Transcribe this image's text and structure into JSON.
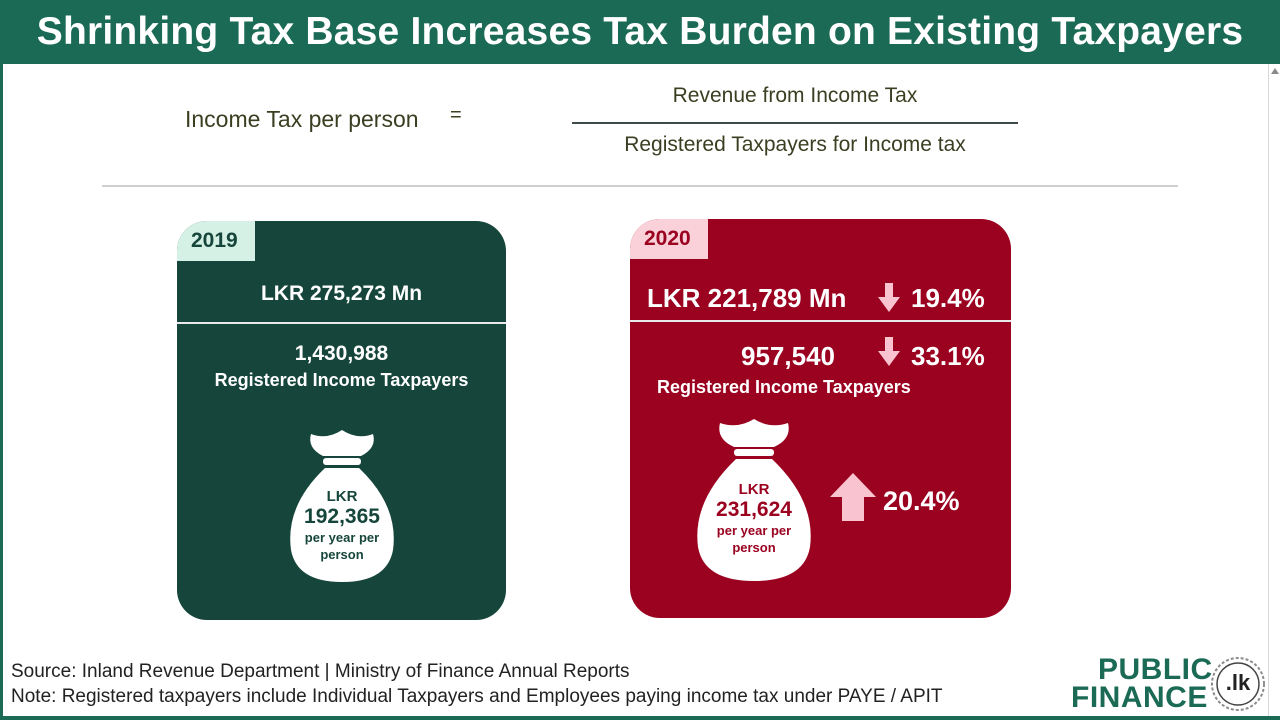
{
  "header": {
    "title": "Shrinking Tax Base Increases Tax Burden on Existing Taxpayers"
  },
  "formula": {
    "lhs": "Income Tax per person",
    "equals": "=",
    "numerator": "Revenue from Income Tax",
    "denominator": "Registered Taxpayers for Income tax"
  },
  "card_2019": {
    "year": "2019",
    "revenue": "LKR 275,273 Mn",
    "taxpayers_count": "1,430,988",
    "taxpayers_label": "Registered Income Taxpayers",
    "bag_currency": "LKR",
    "bag_amount": "192,365",
    "bag_unit": "per year per person",
    "color": "#16463b",
    "tag_color": "#d5f0e4"
  },
  "card_2020": {
    "year": "2020",
    "revenue": "LKR 221,789 Mn",
    "revenue_change": "19.4%",
    "taxpayers_count": "957,540",
    "taxpayers_change": "33.1%",
    "taxpayers_label": "Registered Income Taxpayers",
    "bag_currency": "LKR",
    "bag_amount": "231,624",
    "bag_unit": "per year per person",
    "bag_change": "20.4%",
    "color": "#9a0220",
    "tag_color": "#fad1d9",
    "arrow_color": "#f9c4d0"
  },
  "footer": {
    "source": "Source: Inland Revenue Department | Ministry of Finance Annual Reports",
    "note": "Note: Registered taxpayers include Individual Taxpayers and Employees paying income tax under PAYE / APIT"
  },
  "logo": {
    "line1": "PUBLIC",
    "line2": "FINANCE",
    "seal_text": ".lk",
    "color": "#1b6a55"
  },
  "icons": [
    "down-arrow-icon",
    "up-arrow-icon",
    "money-bag-icon"
  ]
}
